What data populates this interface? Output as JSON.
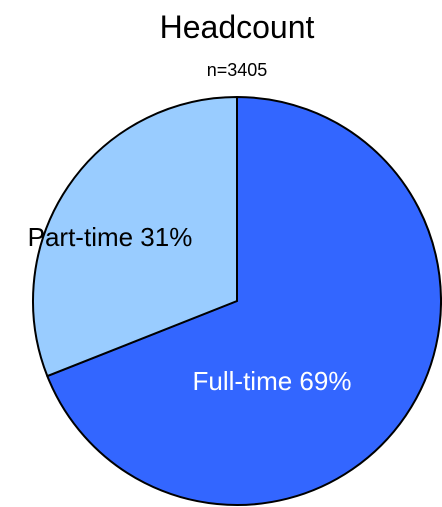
{
  "chart_data": {
    "type": "pie",
    "title": "Headcount",
    "subtitle": "n=3405",
    "slices": [
      {
        "label": "Full-time",
        "value": 69,
        "display": "Full-time 69%",
        "color": "#3366FF",
        "label_color": "#FFFFFF"
      },
      {
        "label": "Part-time",
        "value": 31,
        "display": "Part-time 31%",
        "color": "#99CCFF",
        "label_color": "#000000"
      }
    ],
    "start_angle": "12 o'clock",
    "direction": "clockwise",
    "outline_color": "#000000",
    "legend": "none"
  }
}
